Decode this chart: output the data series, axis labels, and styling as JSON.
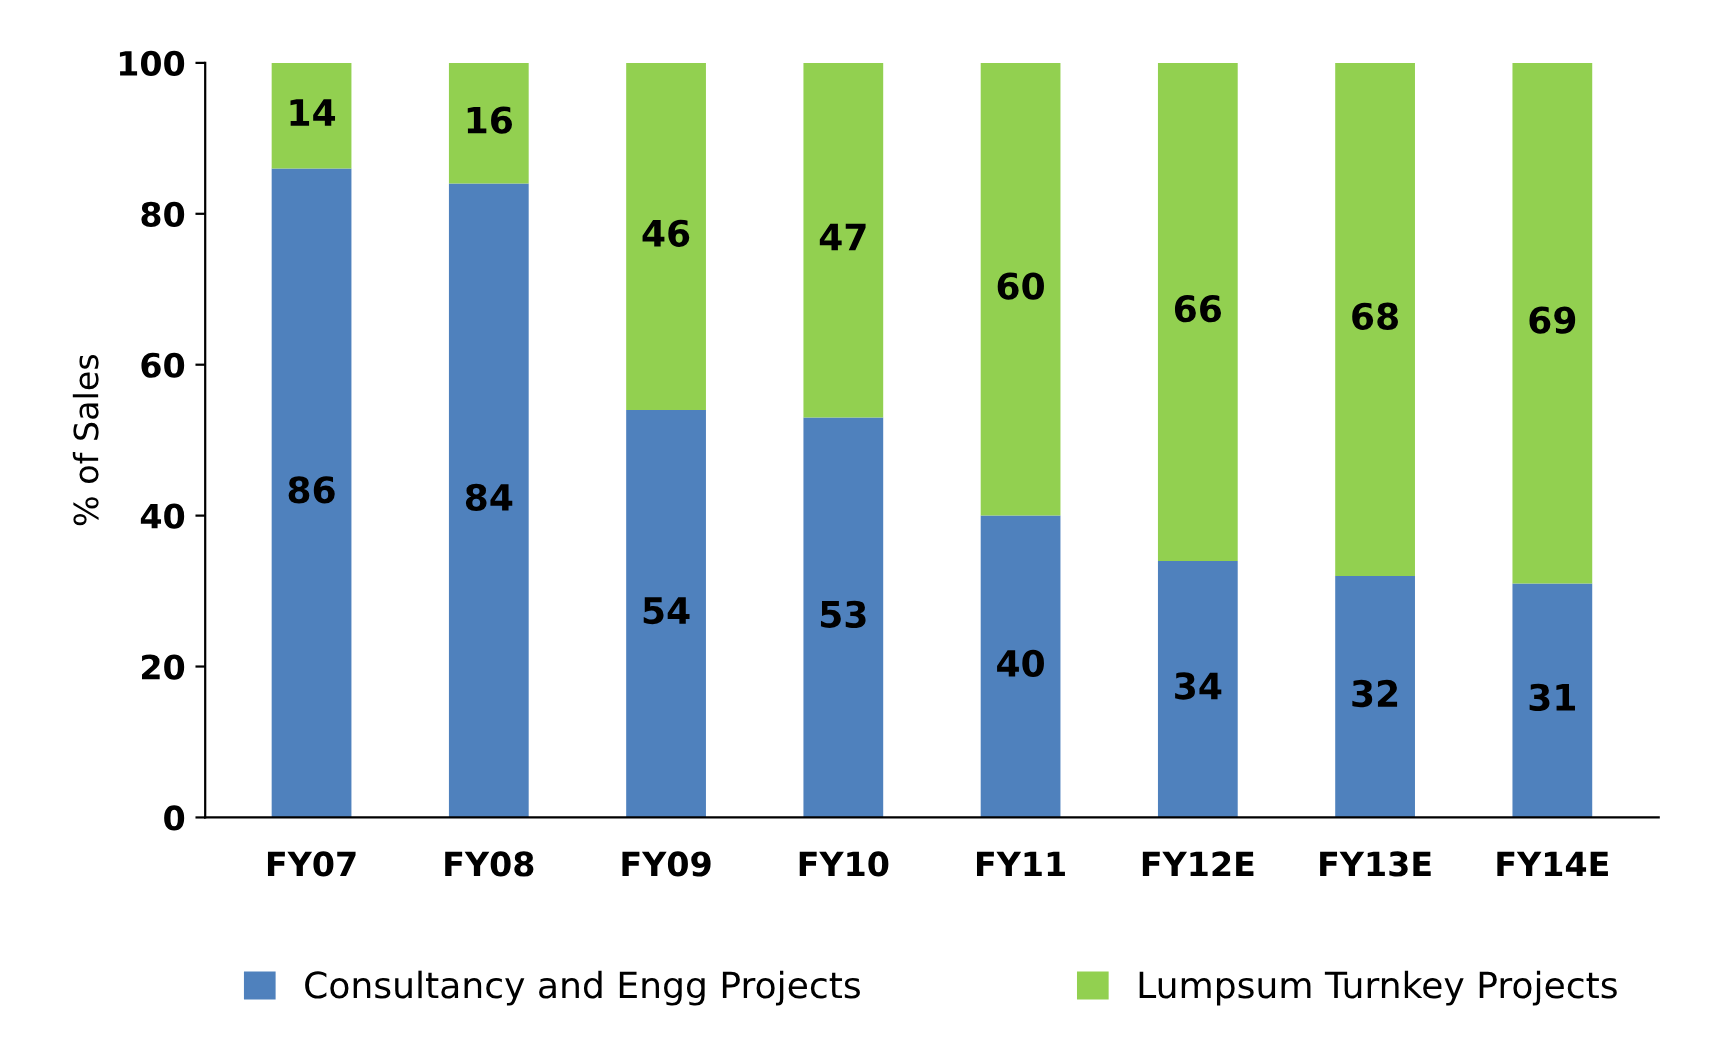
{
  "chart_data": {
    "type": "bar",
    "ylabel": "% of Sales",
    "categories": [
      "FY07",
      "FY08",
      "FY09",
      "FY10",
      "FY11",
      "FY12E",
      "FY13E",
      "FY14E"
    ],
    "series": [
      {
        "name": "Consultancy and Engg Projects",
        "color": "#4f81bd",
        "values": [
          86,
          84,
          54,
          53,
          40,
          34,
          32,
          31
        ]
      },
      {
        "name": "Lumpsum Turnkey Projects",
        "color": "#92d050",
        "values": [
          14,
          16,
          46,
          47,
          60,
          66,
          68,
          69
        ]
      }
    ],
    "stacked": true,
    "data_labels": true,
    "ylim": [
      0,
      100
    ],
    "yticks": [
      0,
      20,
      40,
      60,
      80,
      100
    ],
    "grid": false,
    "legend": "bottom"
  }
}
